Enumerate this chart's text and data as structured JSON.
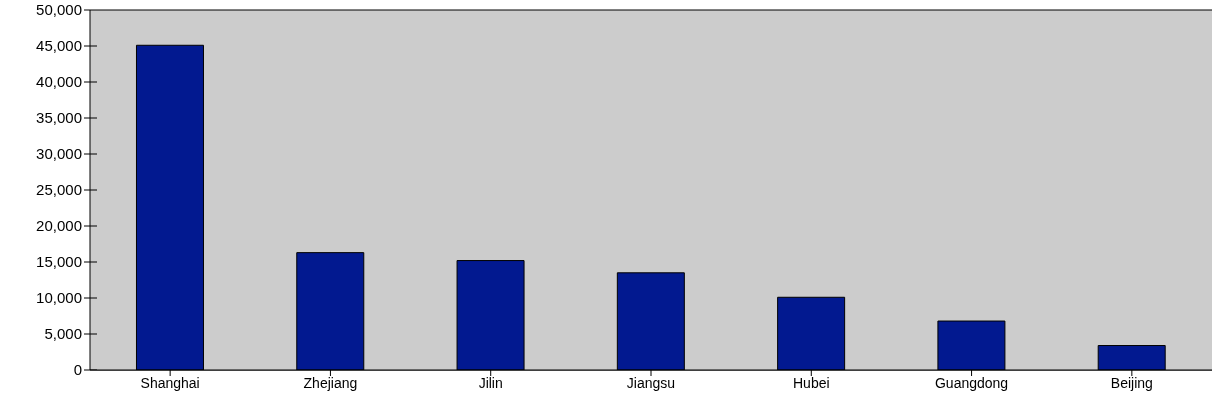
{
  "chart_data": {
    "type": "bar",
    "categories": [
      "Shanghai",
      "Zhejiang",
      "Jilin",
      "Jiangsu",
      "Hubei",
      "Guangdong",
      "Beijing"
    ],
    "values": [
      45100,
      16300,
      15200,
      13500,
      10100,
      6800,
      3400
    ],
    "color": "#021990",
    "ylim": [
      0,
      50000
    ],
    "yticks": [
      0,
      {
        "value": 5000,
        "label": "5,000"
      },
      {
        "value": 10000,
        "label": "10,000"
      },
      {
        "value": 15000,
        "label": "15,000"
      },
      {
        "value": 20000,
        "label": "20,000"
      },
      {
        "value": 25000,
        "label": "25,000"
      },
      {
        "value": 30000,
        "label": "30,000"
      },
      {
        "value": 35000,
        "label": "35,000"
      },
      {
        "value": 40000,
        "label": "40,000"
      },
      {
        "value": 45000,
        "label": "45,000"
      },
      {
        "value": 50000,
        "label": "50,000"
      }
    ],
    "grid": "y"
  }
}
